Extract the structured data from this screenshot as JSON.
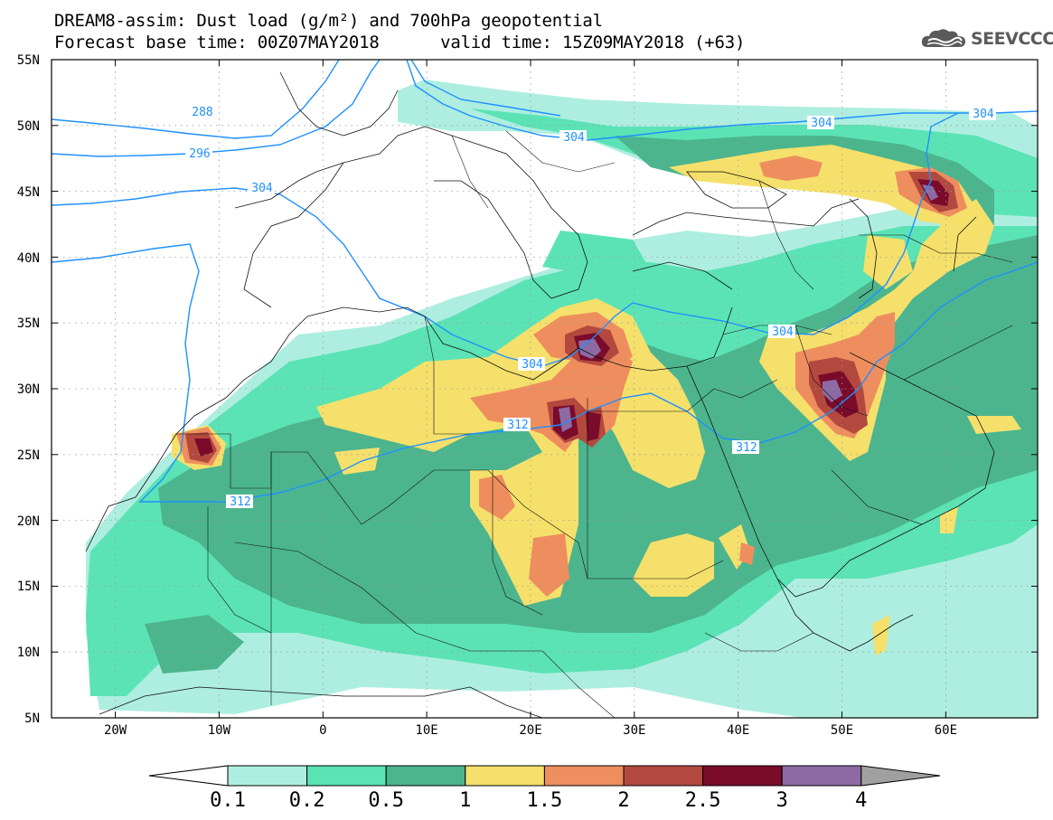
{
  "header": {
    "title": "DREAM8-assim: Dust load (g/m²) and 700hPa geopotential",
    "forecast_base_label": "Forecast base time: 00Z07MAY2018",
    "valid_time_label": "valid time: 15Z09MAY2018 (+63)"
  },
  "brand": {
    "name": "SEEVCCC",
    "icon": "cloud-icon"
  },
  "axes": {
    "lat_labels": [
      "55N",
      "50N",
      "45N",
      "40N",
      "35N",
      "30N",
      "25N",
      "20N",
      "15N",
      "10N",
      "5N"
    ],
    "lon_labels": [
      "20W",
      "10W",
      "0",
      "10E",
      "20E",
      "30E",
      "40E",
      "50E",
      "60E"
    ]
  },
  "contours": {
    "labels": [
      {
        "id": "c288",
        "text": "288"
      },
      {
        "id": "c296",
        "text": "296"
      },
      {
        "id": "c304w",
        "text": "304"
      },
      {
        "id": "c304a",
        "text": "304"
      },
      {
        "id": "c304b",
        "text": "304"
      },
      {
        "id": "c304c",
        "text": "304"
      },
      {
        "id": "c304d",
        "text": "304"
      },
      {
        "id": "c304e",
        "text": "304"
      },
      {
        "id": "c312a",
        "text": "312"
      },
      {
        "id": "c312b",
        "text": "312"
      },
      {
        "id": "c312c",
        "text": "312"
      }
    ],
    "line_color": "#1e90ff"
  },
  "colorbar": {
    "labels": [
      "0.1",
      "0.2",
      "0.5",
      "1",
      "1.5",
      "2",
      "2.5",
      "3",
      "4"
    ],
    "colors": [
      "#aeeee0",
      "#5be3b5",
      "#4cb58e",
      "#f5e06b",
      "#ee8e5e",
      "#b3493e",
      "#7a0b2b",
      "#8d6aa3"
    ],
    "over_color": "#a0a0a0"
  },
  "dust_colors": {
    "c1": "#aeeee0",
    "c2": "#5be3b5",
    "c3": "#4cb58e",
    "c4": "#f5e06b",
    "c5": "#ee8e5e",
    "c6": "#b3493e",
    "c7": "#7a0b2b",
    "c8": "#8d6aa3"
  }
}
